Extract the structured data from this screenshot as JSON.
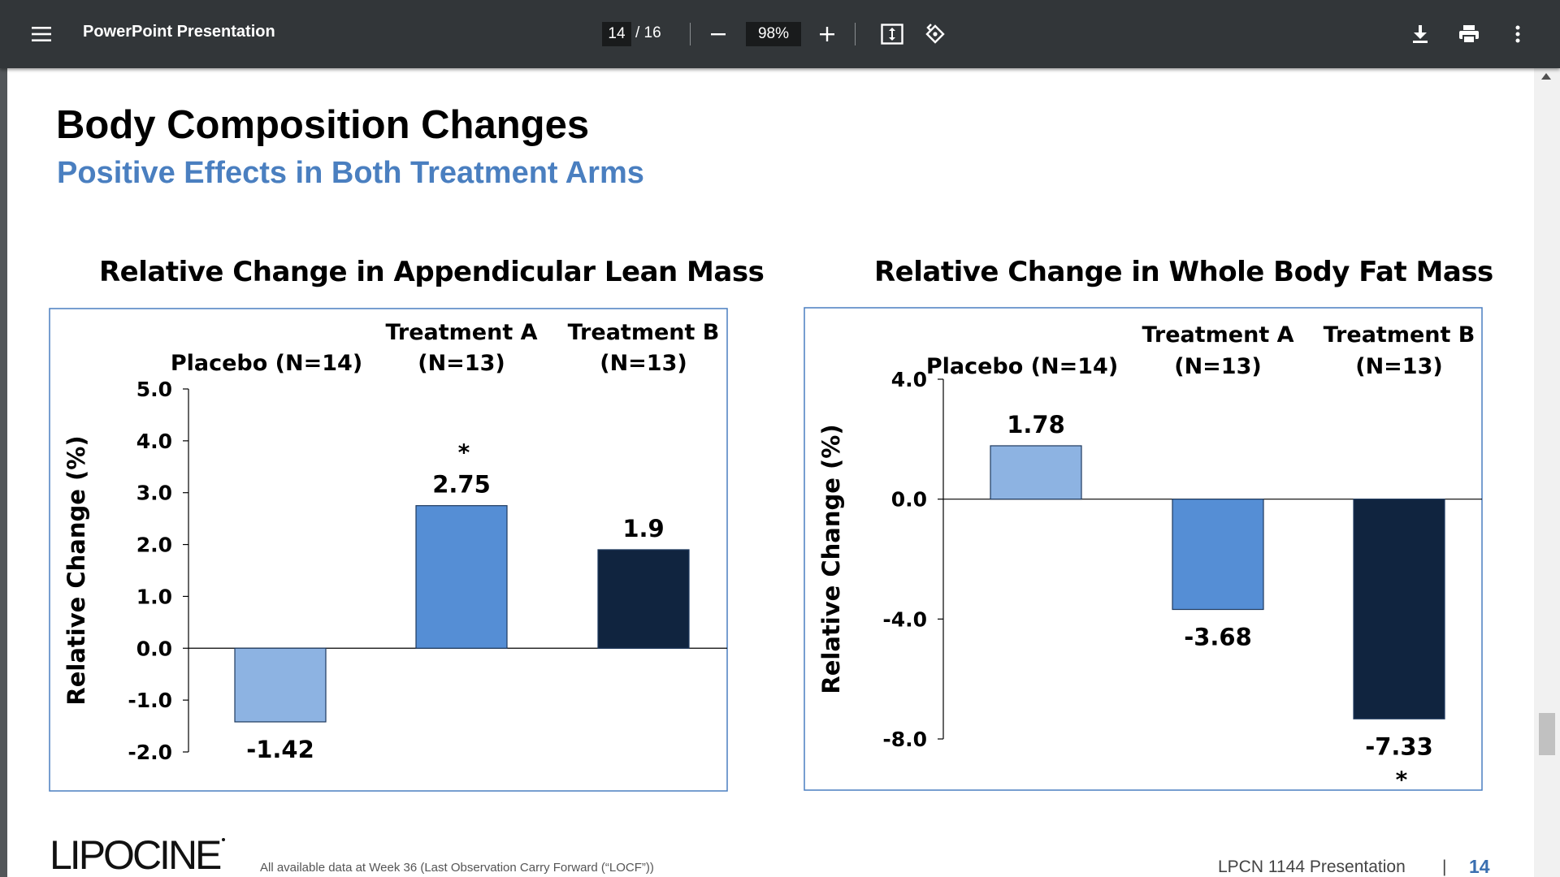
{
  "viewer": {
    "title": "PowerPoint Presentation",
    "page_current": "14",
    "page_total": "/ 16",
    "zoom": "98%",
    "icons": {
      "menu": "menu-icon",
      "zoom_out": "minus-icon",
      "zoom_in": "plus-icon",
      "fit": "fit-page-icon",
      "rotate": "rotate-icon",
      "download": "download-icon",
      "print": "print-icon",
      "more": "more-vert-icon"
    }
  },
  "slide": {
    "title": "Body Composition Changes",
    "subtitle": "Positive Effects in Both Treatment Arms",
    "logo_text": "LIPOCINE",
    "footnote": "All available data at Week 36 (Last Observation Carry Forward (“LOCF”))",
    "footer_presentation": "LPCN 1144 Presentation",
    "footer_sep": "|",
    "footer_page": "14"
  },
  "chart_data": [
    {
      "type": "bar",
      "title": "Relative Change in Appendicular Lean Mass",
      "ylabel": "Relative Change (%)",
      "categories": [
        [
          "Placebo (N=14)"
        ],
        [
          "Treatment A",
          "(N=13)"
        ],
        [
          "Treatment B",
          "(N=13)"
        ]
      ],
      "values": [
        -1.42,
        2.75,
        1.9
      ],
      "value_labels": [
        "-1.42",
        "2.75",
        "1.9"
      ],
      "significance": [
        "",
        "*",
        ""
      ],
      "ylim": [
        -2.0,
        5.0
      ],
      "yticks": [
        "5.0",
        "4.0",
        "3.0",
        "2.0",
        "1.0",
        "0.0",
        "-1.0",
        "-2.0"
      ],
      "ytick_values": [
        5,
        4,
        3,
        2,
        1,
        0,
        -1,
        -2
      ],
      "colors": [
        "#8db3e2",
        "#558ed5",
        "#10243f"
      ],
      "grid": false
    },
    {
      "type": "bar",
      "title": "Relative Change in Whole Body Fat Mass",
      "ylabel": "Relative Change (%)",
      "categories": [
        [
          "Placebo (N=14)"
        ],
        [
          "Treatment A",
          "(N=13)"
        ],
        [
          "Treatment B",
          "(N=13)"
        ]
      ],
      "values": [
        1.78,
        -3.68,
        -7.33
      ],
      "value_labels": [
        "1.78",
        "-3.68",
        "-7.33"
      ],
      "significance": [
        "",
        "",
        "*"
      ],
      "ylim": [
        -8.0,
        4.0
      ],
      "yticks": [
        "4.0",
        "0.0",
        "-4.0",
        "-8.0"
      ],
      "ytick_values": [
        4,
        0,
        -4,
        -8
      ],
      "colors": [
        "#8db3e2",
        "#558ed5",
        "#10243f"
      ],
      "grid": false
    }
  ]
}
